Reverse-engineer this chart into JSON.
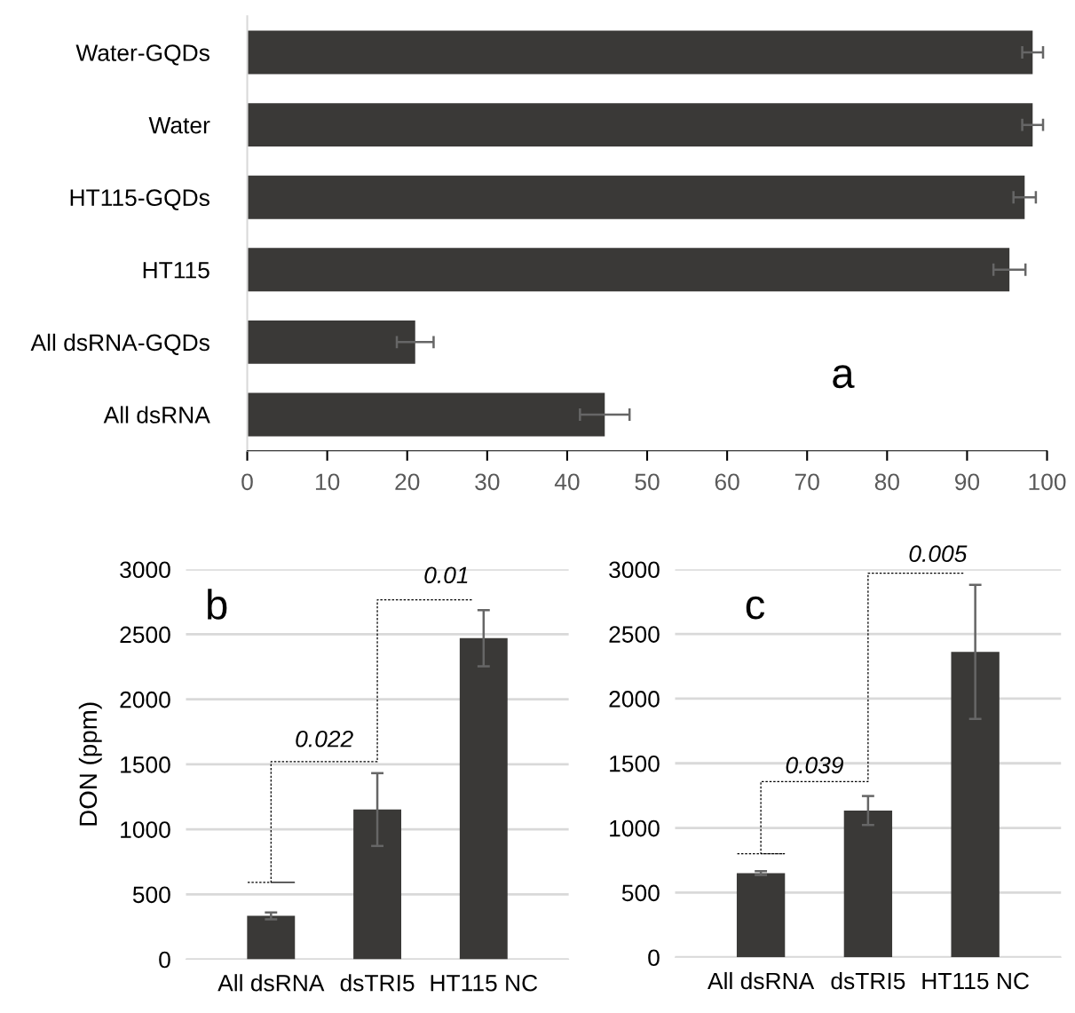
{
  "chart_data": [
    {
      "type": "bar",
      "orientation": "horizontal",
      "categories": [
        "Water-GQDs",
        "Water",
        "HT115-GQDs",
        "HT115",
        "All dsRNA-GQDs",
        "All dsRNA"
      ],
      "values": [
        98.2,
        98.2,
        97.2,
        95.3,
        21.0,
        44.7
      ],
      "errors": [
        1.3,
        1.3,
        1.4,
        2.0,
        2.3,
        3.1
      ],
      "color": "#3a3937",
      "xlim": [
        0,
        100
      ],
      "xticks": [
        0,
        10,
        20,
        30,
        40,
        50,
        60,
        70,
        80,
        90,
        100
      ],
      "grid": false,
      "annotations": [
        "a"
      ]
    },
    {
      "type": "bar",
      "categories": [
        "All dsRNA",
        "dsTRI5",
        "HT115 NC"
      ],
      "values": [
        334,
        1152,
        2470
      ],
      "errors": [
        26,
        280,
        216
      ],
      "color": "#3a3937",
      "ylabel": "DON (ppm)",
      "ylim": [
        0,
        3000
      ],
      "yticks": [
        0,
        500,
        1000,
        1500,
        2000,
        2500,
        3000
      ],
      "grid": "y",
      "annotations": [
        "b",
        "0.022",
        "0.01"
      ]
    },
    {
      "type": "bar",
      "categories": [
        "All dsRNA",
        "dsTRI5",
        "HT115 NC"
      ],
      "values": [
        651,
        1135,
        2362
      ],
      "errors": [
        15,
        112,
        518
      ],
      "color": "#3a3937",
      "ylim": [
        0,
        3000
      ],
      "yticks": [
        0,
        500,
        1000,
        1500,
        2000,
        2500,
        3000
      ],
      "grid": "y",
      "annotations": [
        "c",
        "0.039",
        "0.005"
      ]
    }
  ]
}
